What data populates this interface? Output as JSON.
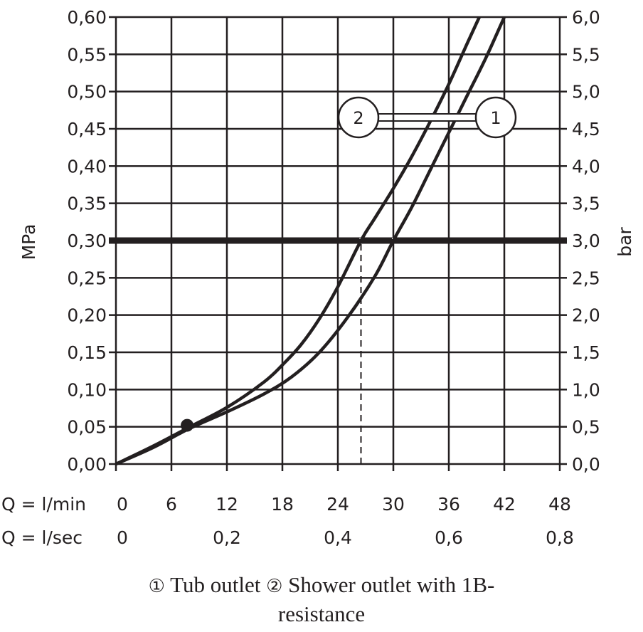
{
  "chart_data": {
    "type": "line",
    "x_label_flow_min": "Q = l/min",
    "x_label_flow_sec": "Q = l/sec",
    "x_ticks_min": [
      "0",
      "6",
      "12",
      "18",
      "24",
      "30",
      "36",
      "42",
      "48"
    ],
    "x_ticks_sec": [
      "0",
      "0,2",
      "0,4",
      "0,6",
      "0,8"
    ],
    "xlim": [
      0,
      48
    ],
    "y_left_label": "MPa",
    "y_left_ticks": [
      "0,00",
      "0,05",
      "0,10",
      "0,15",
      "0,20",
      "0,25",
      "0,30",
      "0,35",
      "0,40",
      "0,45",
      "0,50",
      "0,55",
      "0,60"
    ],
    "y_right_label": "bar",
    "y_right_ticks": [
      "0,0",
      "0,5",
      "1,0",
      "1,5",
      "2,0",
      "2,5",
      "3,0",
      "3,5",
      "4,0",
      "4,5",
      "5,0",
      "5,5",
      "6,0"
    ],
    "ylim": [
      0,
      0.6
    ],
    "grid": true,
    "reference_line_mpa": 0.3,
    "operating_point": {
      "x": 7.7,
      "y": 0.052
    },
    "series": [
      {
        "name": "1",
        "x": [
          0,
          4,
          8,
          12,
          16,
          19,
          22,
          25,
          28,
          30,
          32,
          34,
          36,
          38,
          40,
          42
        ],
        "values": [
          0,
          0.022,
          0.048,
          0.07,
          0.094,
          0.117,
          0.15,
          0.196,
          0.252,
          0.3,
          0.345,
          0.395,
          0.445,
          0.495,
          0.545,
          0.6
        ]
      },
      {
        "name": "2",
        "x": [
          0,
          4,
          8,
          12,
          16,
          18,
          20,
          22,
          24,
          26.5,
          28,
          30,
          32,
          34,
          36,
          38,
          39.3
        ],
        "values": [
          0,
          0.024,
          0.05,
          0.076,
          0.11,
          0.133,
          0.16,
          0.195,
          0.238,
          0.3,
          0.33,
          0.37,
          0.413,
          0.46,
          0.51,
          0.565,
          0.6
        ]
      }
    ],
    "dropdown_lines_x": [
      26.5,
      30
    ],
    "legend_markers": [
      "2",
      "1"
    ]
  },
  "caption": {
    "marker_1": "①",
    "text_1": " Tub outlet ",
    "marker_2": "②",
    "text_2": " Shower outlet with 1B-",
    "line_2": "resistance"
  }
}
